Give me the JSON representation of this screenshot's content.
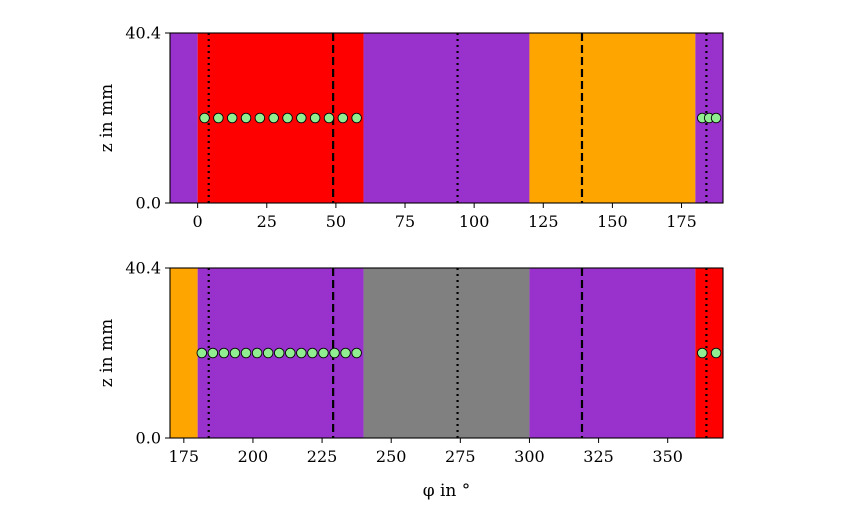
{
  "chart_data": [
    {
      "type": "area",
      "xlim": [
        -10,
        190
      ],
      "ylim": [
        0.0,
        40.4
      ],
      "x_ticks": [
        0,
        25,
        50,
        75,
        100,
        125,
        150,
        175
      ],
      "y_ticks": [
        "0.0",
        "40.4"
      ],
      "xlabel": "",
      "ylabel": "z in mm",
      "regions": [
        {
          "x0": -10,
          "x1": 0,
          "color": "#9932CC"
        },
        {
          "x0": 0,
          "x1": 60,
          "color": "#FF0000"
        },
        {
          "x0": 60,
          "x1": 120,
          "color": "#9932CC"
        },
        {
          "x0": 120,
          "x1": 180,
          "color": "#FFA500"
        },
        {
          "x0": 180,
          "x1": 190,
          "color": "#9932CC"
        }
      ],
      "dashed_lines": [
        49,
        139
      ],
      "dotted_lines": [
        4,
        94,
        184
      ],
      "points": {
        "y": 20.2,
        "x": [
          2.5,
          7.5,
          12.5,
          17.5,
          22.5,
          27.5,
          32.5,
          37.5,
          42.5,
          47.5,
          52.5,
          57.5,
          182.5,
          185,
          187.5
        ],
        "color": "#90EE90"
      }
    },
    {
      "type": "area",
      "xlim": [
        170,
        370
      ],
      "ylim": [
        0.0,
        40.4
      ],
      "x_ticks": [
        175,
        200,
        225,
        250,
        275,
        300,
        325,
        350
      ],
      "y_ticks": [
        "0.0",
        "40.4"
      ],
      "xlabel": "φ in °",
      "ylabel": "z in mm",
      "regions": [
        {
          "x0": 170,
          "x1": 180,
          "color": "#FFA500"
        },
        {
          "x0": 180,
          "x1": 240,
          "color": "#9932CC"
        },
        {
          "x0": 240,
          "x1": 300,
          "color": "#808080"
        },
        {
          "x0": 300,
          "x1": 360,
          "color": "#9932CC"
        },
        {
          "x0": 360,
          "x1": 370,
          "color": "#FF0000"
        }
      ],
      "dashed_lines": [
        229,
        319
      ],
      "dotted_lines": [
        184,
        274,
        364
      ],
      "points": {
        "y": 20.2,
        "x": [
          181.5,
          185.5,
          189.5,
          193.5,
          197.5,
          201.5,
          205.5,
          209.5,
          213.5,
          217.5,
          221.5,
          225.5,
          229.5,
          233.5,
          237.5,
          362.5,
          367.5
        ],
        "color": "#90EE90"
      }
    }
  ]
}
